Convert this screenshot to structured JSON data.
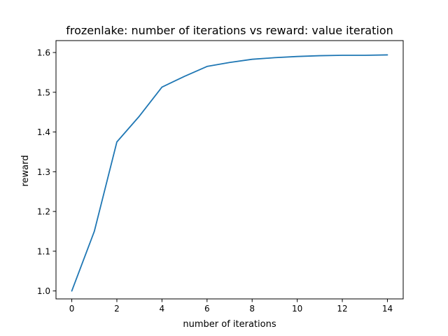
{
  "chart_data": {
    "type": "line",
    "title": "frozenlake: number of iterations vs reward: value iteration",
    "xlabel": "number of iterations",
    "ylabel": "reward",
    "xlim": [
      -0.7,
      14.7
    ],
    "ylim": [
      0.98,
      1.63
    ],
    "xticks": [
      0,
      2,
      4,
      6,
      8,
      10,
      12,
      14
    ],
    "xtick_labels": [
      "0",
      "2",
      "4",
      "6",
      "8",
      "10",
      "12",
      "14"
    ],
    "yticks": [
      1.0,
      1.1,
      1.2,
      1.3,
      1.4,
      1.5,
      1.6
    ],
    "ytick_labels": [
      "1.0",
      "1.1",
      "1.2",
      "1.3",
      "1.4",
      "1.5",
      "1.6"
    ],
    "grid": false,
    "series": [
      {
        "color": "#1f77b4",
        "x": [
          0,
          1,
          2,
          3,
          4,
          5,
          6,
          7,
          8,
          9,
          10,
          11,
          12,
          13,
          14
        ],
        "y": [
          1.0,
          1.15,
          1.375,
          1.44,
          1.513,
          1.54,
          1.565,
          1.575,
          1.583,
          1.587,
          1.59,
          1.592,
          1.593,
          1.593,
          1.594
        ]
      }
    ]
  }
}
